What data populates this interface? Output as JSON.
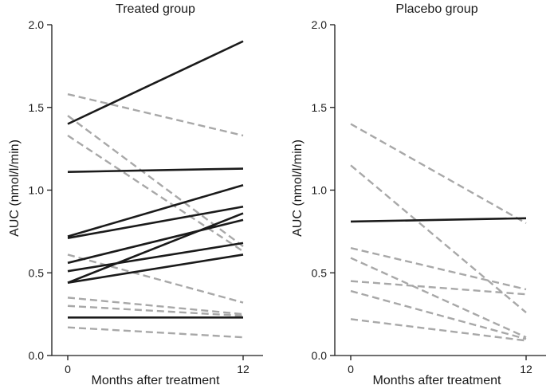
{
  "chart_data": [
    {
      "type": "line",
      "title": "Treated group",
      "xlabel": "Months after treatment",
      "ylabel": "AUC (nmol/l/min)",
      "x": [
        0,
        12
      ],
      "x_ticks": [
        "0",
        "12"
      ],
      "ylim": [
        0,
        2.0
      ],
      "y_ticks": [
        "0.0",
        "0.5",
        "1.0",
        "1.5",
        "2.0"
      ],
      "grid": false,
      "line_styles": {
        "solid": "#1a1a1a",
        "dashed": "#a8a8a8"
      },
      "series": [
        {
          "style": "solid",
          "values": [
            1.4,
            1.9
          ]
        },
        {
          "style": "solid",
          "values": [
            1.11,
            1.13
          ]
        },
        {
          "style": "solid",
          "values": [
            0.72,
            1.03
          ]
        },
        {
          "style": "solid",
          "values": [
            0.71,
            0.9
          ]
        },
        {
          "style": "solid",
          "values": [
            0.56,
            0.82
          ]
        },
        {
          "style": "solid",
          "values": [
            0.44,
            0.86
          ]
        },
        {
          "style": "solid",
          "values": [
            0.51,
            0.68
          ]
        },
        {
          "style": "solid",
          "values": [
            0.44,
            0.61
          ]
        },
        {
          "style": "solid",
          "values": [
            0.23,
            0.23
          ]
        },
        {
          "style": "dashed",
          "values": [
            1.58,
            1.33
          ]
        },
        {
          "style": "dashed",
          "values": [
            1.45,
            0.66
          ]
        },
        {
          "style": "dashed",
          "values": [
            1.33,
            0.63
          ]
        },
        {
          "style": "dashed",
          "values": [
            0.61,
            0.32
          ]
        },
        {
          "style": "dashed",
          "values": [
            0.35,
            0.25
          ]
        },
        {
          "style": "dashed",
          "values": [
            0.3,
            0.24
          ]
        },
        {
          "style": "dashed",
          "values": [
            0.17,
            0.11
          ]
        }
      ]
    },
    {
      "type": "line",
      "title": "Placebo group",
      "xlabel": "Months after treatment",
      "ylabel": "AUC (nmol/l/min)",
      "x": [
        0,
        12
      ],
      "x_ticks": [
        "0",
        "12"
      ],
      "ylim": [
        0,
        2.0
      ],
      "y_ticks": [
        "0.0",
        "0.5",
        "1.0",
        "1.5",
        "2.0"
      ],
      "grid": false,
      "line_styles": {
        "solid": "#1a1a1a",
        "dashed": "#a8a8a8"
      },
      "series": [
        {
          "style": "solid",
          "values": [
            0.81,
            0.83
          ]
        },
        {
          "style": "dashed",
          "values": [
            1.4,
            0.8
          ]
        },
        {
          "style": "dashed",
          "values": [
            1.15,
            0.26
          ]
        },
        {
          "style": "dashed",
          "values": [
            0.65,
            0.4
          ]
        },
        {
          "style": "dashed",
          "values": [
            0.59,
            0.11
          ]
        },
        {
          "style": "dashed",
          "values": [
            0.45,
            0.37
          ]
        },
        {
          "style": "dashed",
          "values": [
            0.39,
            0.1
          ]
        },
        {
          "style": "dashed",
          "values": [
            0.22,
            0.09
          ]
        }
      ]
    }
  ]
}
